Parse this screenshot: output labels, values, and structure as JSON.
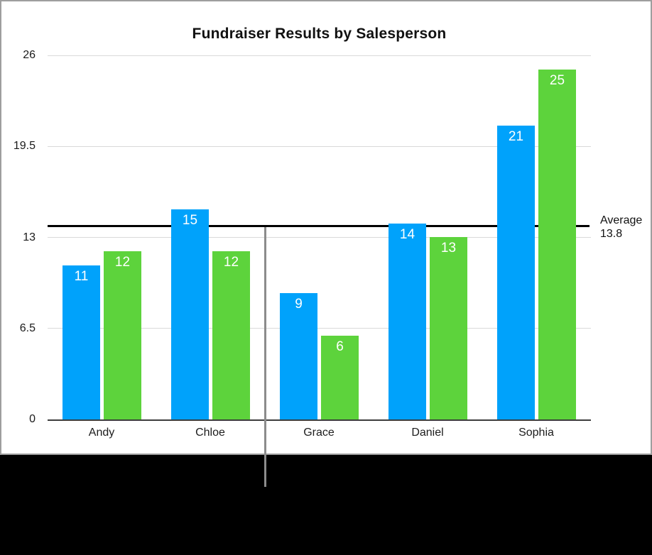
{
  "chart_data": {
    "type": "bar",
    "title": "Fundraiser Results by Salesperson",
    "categories": [
      "Andy",
      "Chloe",
      "Grace",
      "Daniel",
      "Sophia"
    ],
    "series": [
      {
        "name": "blue-series",
        "color": "#00a2fb",
        "values": [
          11,
          15,
          9,
          14,
          21
        ]
      },
      {
        "name": "green-series",
        "color": "#5dd33c",
        "values": [
          12,
          12,
          6,
          13,
          25
        ]
      }
    ],
    "ylim": [
      0,
      26
    ],
    "yticks": [
      0,
      6.5,
      13,
      19.5,
      26
    ],
    "ytick_labels": [
      "0",
      "6.5",
      "13",
      "19.5",
      "26"
    ],
    "grid": "horizontal",
    "legend": "none",
    "value_labels": "inside-top",
    "annotations": {
      "average_line": {
        "value": 13.8,
        "label_line1": "Average",
        "label_line2": "13.8",
        "color": "#000000"
      }
    }
  },
  "colors": {
    "panel_background": "#ffffff",
    "panel_border": "#9e9e9e",
    "gridline": "#d9d9d9",
    "axis_baseline": "#3d3d3d",
    "average_line": "#000000",
    "callout_line": "#8c8c8c",
    "value_label_text": "#ffffff",
    "text": "#1a1a1a",
    "lower_background": "#000000"
  }
}
